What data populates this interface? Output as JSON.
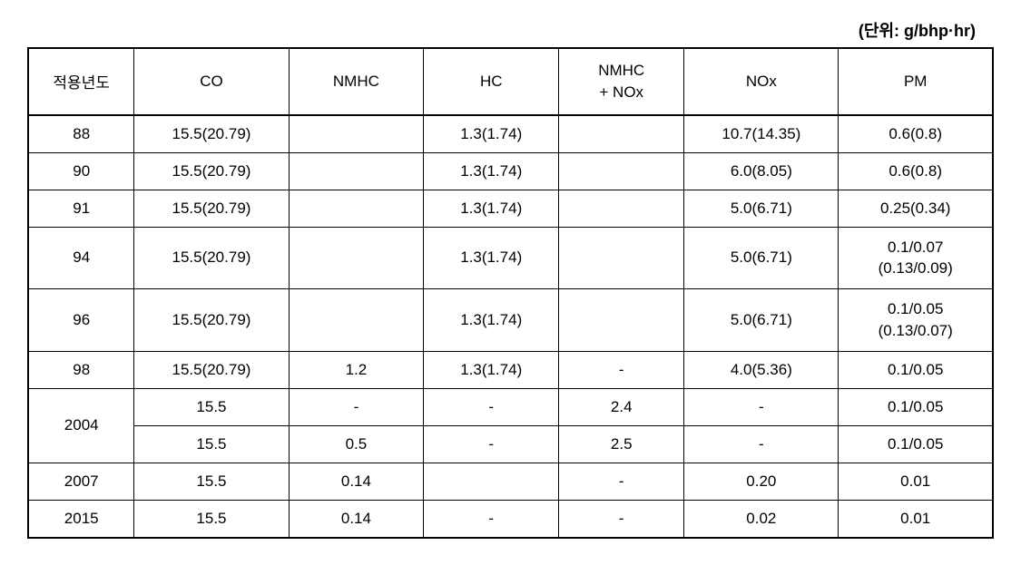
{
  "unit_label": "(단위: g/bhp·hr)",
  "columns": [
    "적용년도",
    "CO",
    "NMHC",
    "HC",
    "NMHC\n+ NOx",
    "NOx",
    "PM"
  ],
  "column_widths": [
    "11%",
    "16%",
    "14%",
    "14%",
    "13%",
    "16%",
    "16%"
  ],
  "rows": [
    {
      "year": "88",
      "co": "15.5(20.79)",
      "nmhc": "",
      "hc": "1.3(1.74)",
      "nmhcnox": "",
      "nox": "10.7(14.35)",
      "pm": "0.6(0.8)"
    },
    {
      "year": "90",
      "co": "15.5(20.79)",
      "nmhc": "",
      "hc": "1.3(1.74)",
      "nmhcnox": "",
      "nox": "6.0(8.05)",
      "pm": "0.6(0.8)"
    },
    {
      "year": "91",
      "co": "15.5(20.79)",
      "nmhc": "",
      "hc": "1.3(1.74)",
      "nmhcnox": "",
      "nox": "5.0(6.71)",
      "pm": "0.25(0.34)"
    },
    {
      "year": "94",
      "co": "15.5(20.79)",
      "nmhc": "",
      "hc": "1.3(1.74)",
      "nmhcnox": "",
      "nox": "5.0(6.71)",
      "pm": "0.1/0.07\n(0.13/0.09)"
    },
    {
      "year": "96",
      "co": "15.5(20.79)",
      "nmhc": "",
      "hc": "1.3(1.74)",
      "nmhcnox": "",
      "nox": "5.0(6.71)",
      "pm": "0.1/0.05\n(0.13/0.07)"
    },
    {
      "year": "98",
      "co": "15.5(20.79)",
      "nmhc": "1.2",
      "hc": "1.3(1.74)",
      "nmhcnox": "-",
      "nox": "4.0(5.36)",
      "pm": "0.1/0.05"
    },
    {
      "year": "2004",
      "year_rowspan": 2,
      "co": "15.5",
      "nmhc": "-",
      "hc": "-",
      "nmhcnox": "2.4",
      "nox": "-",
      "pm": "0.1/0.05"
    },
    {
      "year_skip": true,
      "co": "15.5",
      "nmhc": "0.5",
      "hc": "-",
      "nmhcnox": "2.5",
      "nox": "-",
      "pm": "0.1/0.05"
    },
    {
      "year": "2007",
      "co": "15.5",
      "nmhc": "0.14",
      "hc": "",
      "nmhcnox": "-",
      "nox": "0.20",
      "pm": "0.01"
    },
    {
      "year": "2015",
      "co": "15.5",
      "nmhc": "0.14",
      "hc": "-",
      "nmhcnox": "-",
      "nox": "0.02",
      "pm": "0.01"
    }
  ],
  "styles": {
    "border_color": "#000000",
    "background_color": "#ffffff",
    "font_size_body": 17,
    "font_size_unit": 18,
    "outer_border_width": 2.5,
    "inner_border_width": 1
  }
}
